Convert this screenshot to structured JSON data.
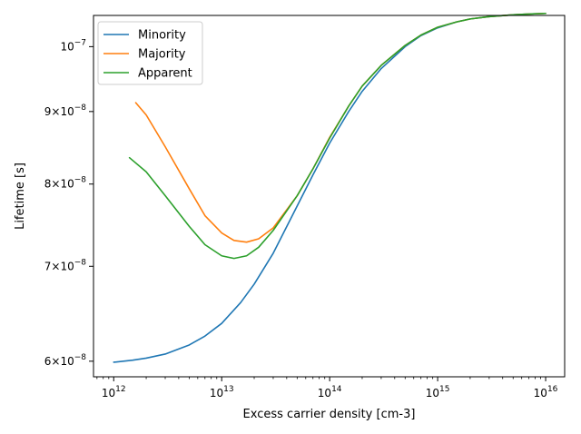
{
  "chart_data": {
    "type": "line",
    "xlabel": "Excess carrier density [cm-3]",
    "ylabel": "Lifetime [s]",
    "xscale": "log",
    "yscale": "log",
    "xlim": [
      650000000000.0,
      1.5e+16
    ],
    "ylim": [
      5.85e-08,
      1.052e-07
    ],
    "grid": false,
    "legend_position": "upper-left",
    "x_ticks": [
      {
        "value": 1000000000000.0,
        "base": "10",
        "exp": "12"
      },
      {
        "value": 10000000000000.0,
        "base": "10",
        "exp": "13"
      },
      {
        "value": 100000000000000.0,
        "base": "10",
        "exp": "14"
      },
      {
        "value": 1000000000000000.0,
        "base": "10",
        "exp": "15"
      },
      {
        "value": 1e+16,
        "base": "10",
        "exp": "16"
      }
    ],
    "y_ticks": [
      {
        "value": 6e-08,
        "mant": "6",
        "times": "×",
        "base": "10",
        "exp": "−8"
      },
      {
        "value": 7e-08,
        "mant": "7",
        "times": "×",
        "base": "10",
        "exp": "−8"
      },
      {
        "value": 8e-08,
        "mant": "8",
        "times": "×",
        "base": "10",
        "exp": "−8"
      },
      {
        "value": 9e-08,
        "mant": "9",
        "times": "×",
        "base": "10",
        "exp": "−8"
      },
      {
        "value": 1e-07,
        "mant": "",
        "times": "",
        "base": "10",
        "exp": "−7"
      }
    ],
    "series": [
      {
        "name": "Minority",
        "color": "#1f77b4",
        "x": [
          1000000000000.0,
          1500000000000.0,
          2000000000000.0,
          3000000000000.0,
          5000000000000.0,
          7000000000000.0,
          10000000000000.0,
          15000000000000.0,
          20000000000000.0,
          30000000000000.0,
          50000000000000.0,
          70000000000000.0,
          100000000000000.0,
          150000000000000.0,
          200000000000000.0,
          300000000000000.0,
          500000000000000.0,
          700000000000000.0,
          1000000000000000.0,
          1500000000000000.0,
          2000000000000000.0,
          3000000000000000.0,
          5000000000000000.0,
          7000000000000000.0,
          1e+16
        ],
        "y": [
          5.99e-08,
          6.01e-08,
          6.03e-08,
          6.07e-08,
          6.16e-08,
          6.25e-08,
          6.38e-08,
          6.6e-08,
          6.8e-08,
          7.15e-08,
          7.72e-08,
          8.12e-08,
          8.55e-08,
          9e-08,
          9.3e-08,
          9.65e-08,
          1e-07,
          1.018e-07,
          1.031e-07,
          1.041e-07,
          1.046e-07,
          1.05e-07,
          1.053e-07,
          1.0545e-07,
          1.0555e-07
        ]
      },
      {
        "name": "Majority",
        "color": "#ff7f0e",
        "x": [
          1600000000000.0,
          2000000000000.0,
          3000000000000.0,
          5000000000000.0,
          7000000000000.0,
          10000000000000.0,
          13000000000000.0,
          17000000000000.0,
          22000000000000.0,
          30000000000000.0,
          50000000000000.0,
          70000000000000.0,
          100000000000000.0,
          150000000000000.0,
          200000000000000.0,
          300000000000000.0,
          500000000000000.0,
          700000000000000.0,
          1000000000000000.0,
          1500000000000000.0,
          2000000000000000.0,
          3000000000000000.0,
          5000000000000000.0,
          7000000000000000.0,
          1e+16
        ],
        "y": [
          9.13e-08,
          8.95e-08,
          8.5e-08,
          7.94e-08,
          7.6e-08,
          7.39e-08,
          7.3e-08,
          7.28e-08,
          7.32e-08,
          7.45e-08,
          7.85e-08,
          8.2e-08,
          8.63e-08,
          9.08e-08,
          9.38e-08,
          9.7e-08,
          1.002e-07,
          1.019e-07,
          1.032e-07,
          1.041e-07,
          1.046e-07,
          1.05e-07,
          1.053e-07,
          1.0545e-07,
          1.0555e-07
        ]
      },
      {
        "name": "Apparent",
        "color": "#2ca02c",
        "x": [
          1400000000000.0,
          2000000000000.0,
          3000000000000.0,
          5000000000000.0,
          7000000000000.0,
          10000000000000.0,
          13000000000000.0,
          17000000000000.0,
          22000000000000.0,
          30000000000000.0,
          50000000000000.0,
          70000000000000.0,
          100000000000000.0,
          150000000000000.0,
          200000000000000.0,
          300000000000000.0,
          500000000000000.0,
          700000000000000.0,
          1000000000000000.0,
          1500000000000000.0,
          2000000000000000.0,
          3000000000000000.0,
          5000000000000000.0,
          7000000000000000.0,
          1e+16
        ],
        "y": [
          8.35e-08,
          8.16e-08,
          7.85e-08,
          7.47e-08,
          7.25e-08,
          7.12e-08,
          7.09e-08,
          7.12e-08,
          7.22e-08,
          7.42e-08,
          7.85e-08,
          8.2e-08,
          8.62e-08,
          9.08e-08,
          9.38e-08,
          9.7e-08,
          1.002e-07,
          1.019e-07,
          1.032e-07,
          1.041e-07,
          1.046e-07,
          1.05e-07,
          1.053e-07,
          1.0545e-07,
          1.0555e-07
        ]
      }
    ]
  }
}
